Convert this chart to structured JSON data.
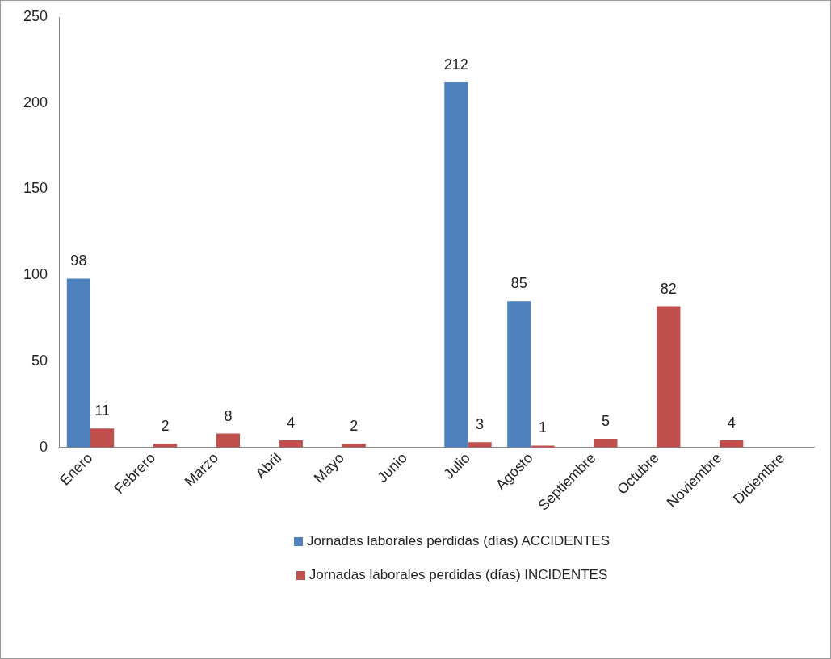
{
  "chart_data": {
    "type": "bar",
    "categories": [
      "Enero",
      "Febrero",
      "Marzo",
      "Abril",
      "Mayo",
      "Junio",
      "Julio",
      "Agosto",
      "Septiembre",
      "Octubre",
      "Noviembre",
      "Diciembre"
    ],
    "series": [
      {
        "name": "Jornadas laborales perdidas (días) ACCIDENTES",
        "color": "#4f81bd",
        "values": [
          98,
          null,
          null,
          null,
          null,
          null,
          212,
          85,
          null,
          null,
          null,
          null
        ],
        "value_labels": [
          "98",
          null,
          null,
          null,
          null,
          null,
          "212",
          "85",
          null,
          null,
          null,
          null
        ]
      },
      {
        "name": "Jornadas laborales perdidas (días) INCIDENTES",
        "color": "#c0504d",
        "values": [
          11,
          2,
          8,
          4,
          2,
          null,
          3,
          1,
          5,
          82,
          4,
          null
        ],
        "value_labels": [
          "11",
          "2",
          "8",
          "4",
          "2",
          null,
          "3",
          "1",
          "5",
          "82",
          "4",
          null
        ]
      }
    ],
    "ylim": [
      0,
      250
    ],
    "yticks": [
      0,
      50,
      100,
      150,
      200,
      250
    ],
    "grid": false,
    "legend": "bottom"
  }
}
